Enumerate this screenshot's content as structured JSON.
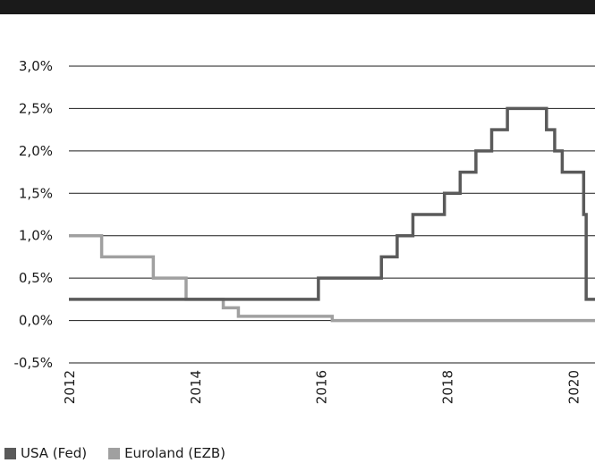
{
  "chart_data": {
    "type": "line",
    "step": true,
    "title": "",
    "xlabel": "",
    "ylabel": "",
    "xlim": [
      2012,
      2020.35
    ],
    "ylim": [
      -0.5,
      3.0
    ],
    "x_ticks": [
      2012,
      2014,
      2016,
      2018,
      2020
    ],
    "x_tick_labels": [
      "2012",
      "2014",
      "2016",
      "2018",
      "2020"
    ],
    "y_ticks": [
      -0.5,
      0.0,
      0.5,
      1.0,
      1.5,
      2.0,
      2.5,
      3.0
    ],
    "y_tick_labels": [
      "-0,5%",
      "0,0%",
      "0,5%",
      "1,0%",
      "1,5%",
      "2,0%",
      "2,5%",
      "3,0%"
    ],
    "grid": "horizontal",
    "legend_position": "bottom-left",
    "series": [
      {
        "name": "USA (Fed)",
        "color": "#5a5a5a",
        "x": [
          2012.0,
          2015.96,
          2016.96,
          2017.21,
          2017.46,
          2017.96,
          2018.21,
          2018.46,
          2018.71,
          2018.96,
          2019.58,
          2019.71,
          2019.83,
          2020.17,
          2020.21,
          2020.35
        ],
        "y": [
          0.25,
          0.5,
          0.75,
          1.0,
          1.25,
          1.5,
          1.75,
          2.0,
          2.25,
          2.5,
          2.25,
          2.0,
          1.75,
          1.25,
          0.25,
          0.25
        ]
      },
      {
        "name": "Euroland (EZB)",
        "color": "#a0a0a0",
        "x": [
          2012.0,
          2012.52,
          2013.34,
          2013.86,
          2014.45,
          2014.69,
          2016.18,
          2020.35
        ],
        "y": [
          1.0,
          0.75,
          0.5,
          0.25,
          0.15,
          0.05,
          0.0,
          0.0
        ]
      }
    ]
  }
}
